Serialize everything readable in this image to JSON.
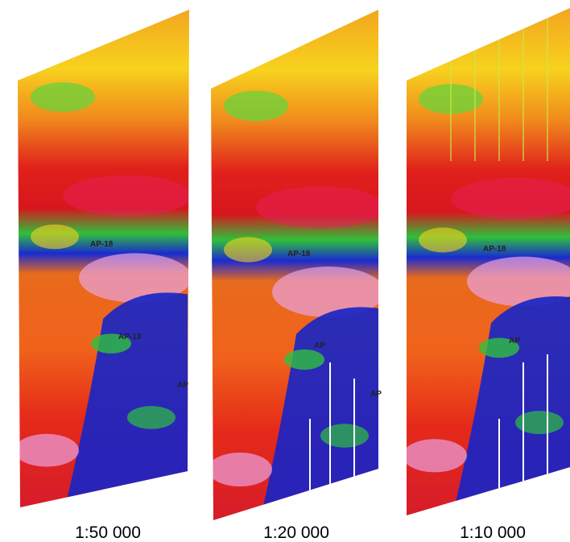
{
  "panels": [
    {
      "caption": "1:50 000",
      "labels": [
        "AP-18",
        "AP-13",
        "AP"
      ]
    },
    {
      "caption": "1:20 000",
      "labels": [
        "AP-18",
        "AP",
        "AP"
      ]
    },
    {
      "caption": "1:10 000",
      "labels": [
        "AP-18",
        "AP"
      ]
    }
  ]
}
